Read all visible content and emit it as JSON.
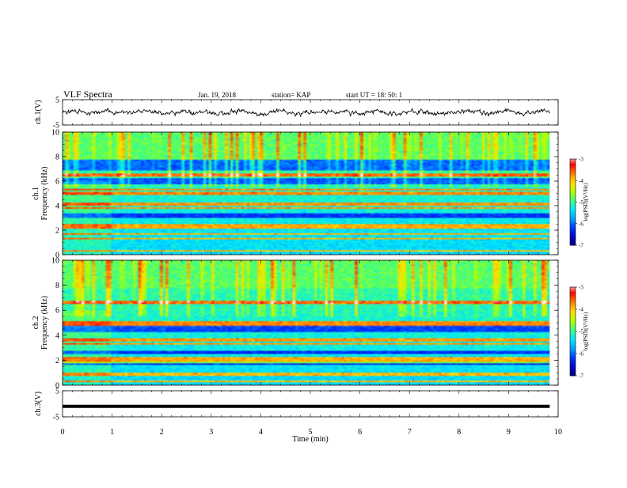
{
  "header": {
    "title": "VLF Spectra",
    "date": "Jan. 19, 2018",
    "station": "station= KAP",
    "start": "start  UT =   18: 50: 1"
  },
  "chart_data": [
    {
      "type": "line",
      "name": "ch1-waveform",
      "ylabel": "ch.1(V)",
      "ylim": [
        -5,
        5
      ],
      "yticks": [
        "5",
        "-5"
      ],
      "xlim": [
        0,
        10
      ],
      "data_extent": [
        0,
        9.83
      ],
      "amplitude_range": [
        -2.2,
        1.8
      ]
    },
    {
      "type": "heatmap",
      "name": "ch1-spectrogram",
      "ylabel": "ch.1\nFrequency (kHz)",
      "ylim": [
        0,
        10
      ],
      "yticks": [
        "0",
        "2",
        "4",
        "6",
        "8",
        "10"
      ],
      "xlim": [
        0,
        10
      ],
      "data_extent": [
        0,
        9.83
      ],
      "dark_bands_khz": [
        [
          3.0,
          3.4
        ],
        [
          5.7,
          6.2
        ],
        [
          6.9,
          7.7
        ]
      ],
      "bright_lines_khz": [
        0.3,
        1.3,
        1.7,
        2.2,
        2.35,
        3.8,
        4.1,
        5.0,
        5.3,
        6.5
      ],
      "colorbar": {
        "label": "log(PSD)(V²/Hz)",
        "range": [
          -7,
          -3
        ],
        "ticks": [
          "-3",
          "-4",
          "-5",
          "-6",
          "-7"
        ]
      }
    },
    {
      "type": "heatmap",
      "name": "ch2-spectrogram",
      "ylabel": "ch.2\nFrequency (kHz)",
      "ylim": [
        0,
        10
      ],
      "yticks": [
        "0",
        "2",
        "4",
        "6",
        "8",
        "10"
      ],
      "xlim": [
        0,
        10
      ],
      "data_extent": [
        0,
        9.83
      ],
      "dark_bands_khz": [
        [
          1.6,
          1.9
        ],
        [
          2.5,
          2.8
        ],
        [
          4.3,
          4.7
        ]
      ],
      "bright_lines_khz": [
        0.3,
        0.9,
        1.9,
        2.1,
        3.3,
        3.6,
        4.8,
        5.0,
        6.6
      ],
      "colorbar": {
        "label": "log(PSD)(V²/Hz)",
        "range": [
          -7,
          -3
        ],
        "ticks": [
          "-3",
          "-4",
          "-5",
          "-6",
          "-7"
        ]
      }
    },
    {
      "type": "line",
      "name": "ch3-waveform",
      "ylabel": "ch.3(V)",
      "ylim": [
        -5,
        5
      ],
      "yticks": [
        "5",
        "-5"
      ],
      "xlim": [
        0,
        10
      ],
      "data_extent": [
        0,
        9.83
      ],
      "value": -1.0
    }
  ],
  "xaxis": {
    "label": "Time  (min)",
    "ticks": [
      "0",
      "1",
      "2",
      "3",
      "4",
      "5",
      "6",
      "7",
      "8",
      "9",
      "10"
    ]
  },
  "colors": {
    "colormap": [
      "#00007a",
      "#0000c8",
      "#0033ff",
      "#00a0ff",
      "#00e6ff",
      "#40ff80",
      "#b4ff00",
      "#ffe000",
      "#ff8000",
      "#ff0000",
      "#ffffff"
    ],
    "line": "#000000"
  }
}
